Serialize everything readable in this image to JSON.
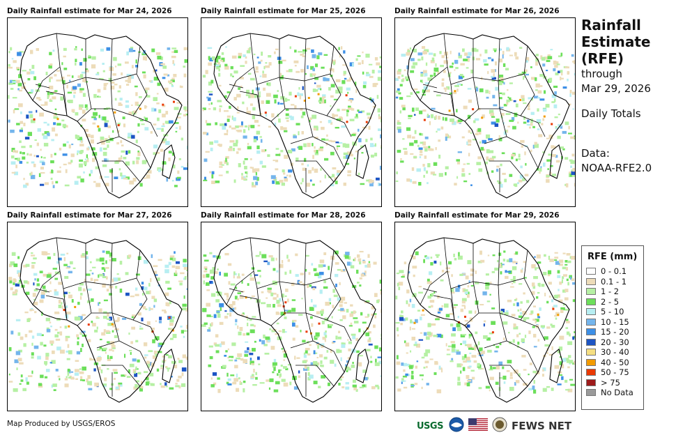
{
  "panels": [
    {
      "title": "Daily Rainfall estimate for Mar 24, 2026"
    },
    {
      "title": "Daily Rainfall estimate for Mar 25, 2026"
    },
    {
      "title": "Daily Rainfall estimate for Mar 26, 2026"
    },
    {
      "title": "Daily Rainfall estimate for Mar 27, 2026"
    },
    {
      "title": "Daily Rainfall estimate for Mar 28, 2026"
    },
    {
      "title": "Daily Rainfall estimate for Mar 29, 2026"
    }
  ],
  "sidebar": {
    "title_lines": [
      "Rainfall",
      "Estimate",
      "(RFE)"
    ],
    "through": "through",
    "date": "Mar 29, 2026",
    "period": "Daily Totals",
    "data_label": "Data:",
    "data_source": "NOAA-RFE2.0"
  },
  "legend": {
    "title": "RFE (mm)",
    "items": [
      {
        "label": "0 - 0.1",
        "color": "#ffffff"
      },
      {
        "label": "0.1 - 1",
        "color": "#eddcb9"
      },
      {
        "label": "1 - 2",
        "color": "#b6f0a4"
      },
      {
        "label": "2 - 5",
        "color": "#6cdf5a"
      },
      {
        "label": "5 - 10",
        "color": "#b7eef2"
      },
      {
        "label": "10 - 15",
        "color": "#74b5ec"
      },
      {
        "label": "15 - 20",
        "color": "#3d8fe6"
      },
      {
        "label": "20 - 30",
        "color": "#1d55c4"
      },
      {
        "label": "30 - 40",
        "color": "#f5de82"
      },
      {
        "label": "40 - 50",
        "color": "#f29b00"
      },
      {
        "label": "50 - 75",
        "color": "#ea3a05"
      },
      {
        "label": "> 75",
        "color": "#9e1b1b"
      },
      {
        "label": "No Data",
        "color": "#9a9a9a"
      }
    ]
  },
  "footer": {
    "credit": "Map Produced by USGS/EROS"
  },
  "logos": {
    "usgs": "USGS",
    "fews": "FEWS NET"
  }
}
